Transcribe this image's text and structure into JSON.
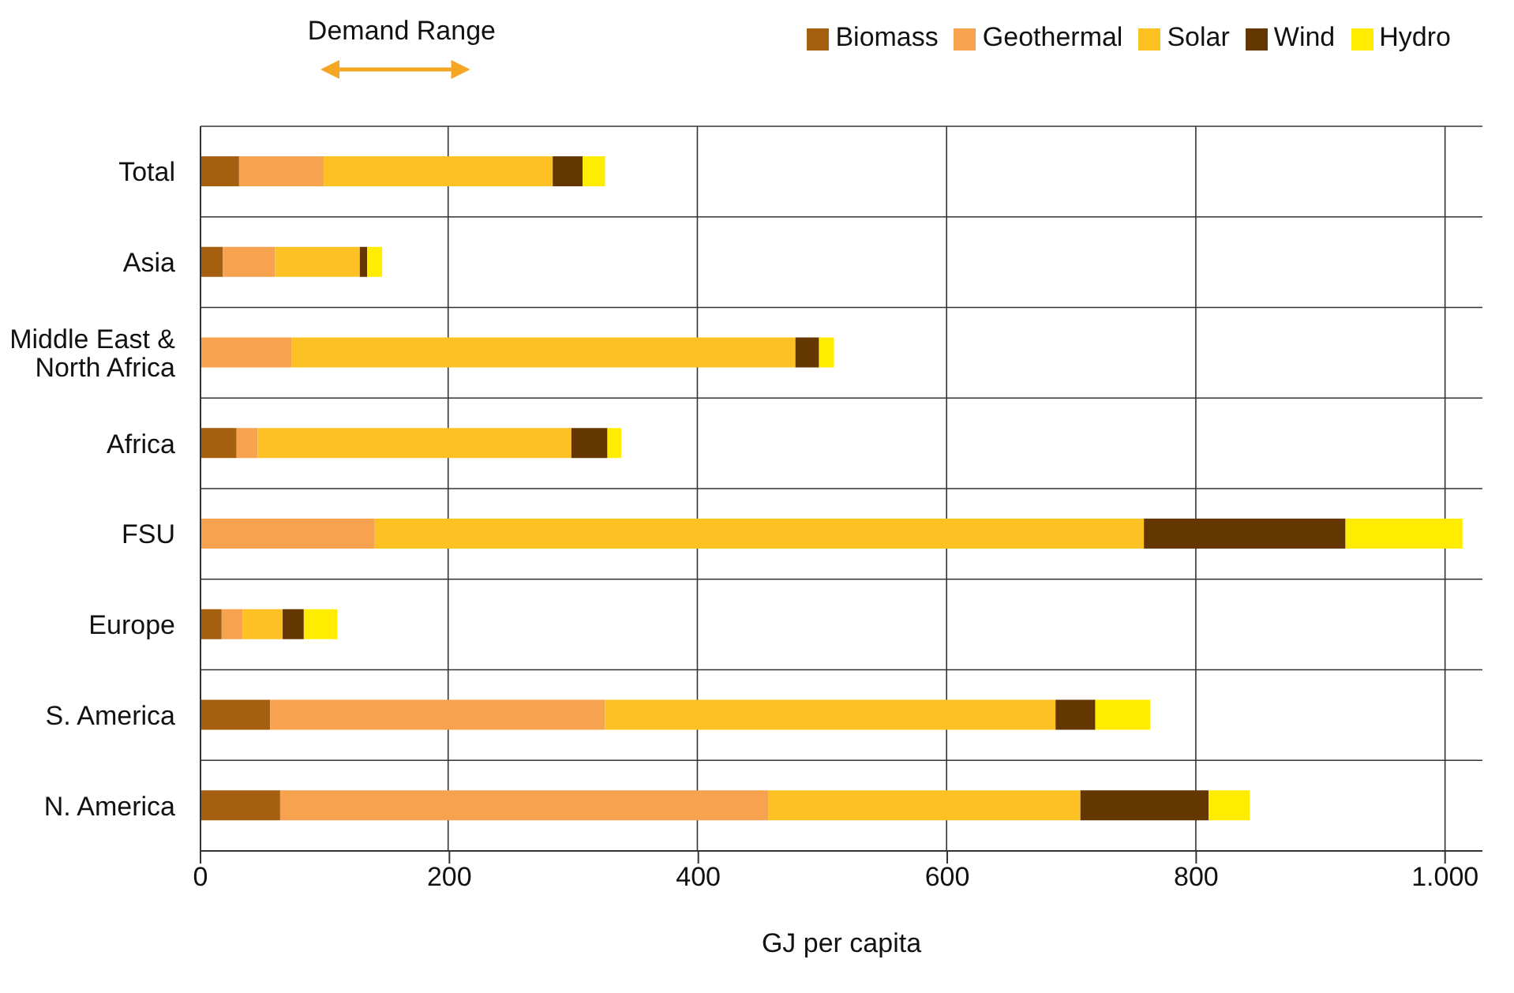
{
  "chart_data": {
    "type": "bar",
    "orientation": "horizontal",
    "stacked": true,
    "categories": [
      "Total",
      "Asia",
      "Middle East & North Africa",
      "Africa",
      "FSU",
      "Europe",
      "S. America",
      "N. America"
    ],
    "series": [
      {
        "name": "Biomass",
        "color": "#a65e0f",
        "values": [
          31,
          18,
          0,
          29,
          0,
          17,
          56,
          64
        ]
      },
      {
        "name": "Geothermal",
        "color": "#f7a24f",
        "values": [
          68,
          42,
          73,
          17,
          140,
          17,
          269,
          392
        ]
      },
      {
        "name": "Solar",
        "color": "#fdc124",
        "values": [
          184,
          68,
          405,
          252,
          618,
          32,
          362,
          251
        ]
      },
      {
        "name": "Wind",
        "color": "#653700",
        "values": [
          24,
          6,
          19,
          29,
          162,
          17,
          32,
          103
        ]
      },
      {
        "name": "Hydro",
        "color": "#ffec00",
        "values": [
          18,
          12,
          12,
          11,
          94,
          27,
          44,
          33
        ]
      }
    ],
    "xlim": [
      0,
      1030
    ],
    "xticks": [
      0,
      200,
      400,
      600,
      800,
      {
        "value": 1000,
        "label": "1.000"
      }
    ],
    "xlabel": "GJ per capita",
    "annotations": [
      "Demand Range"
    ],
    "grid": true,
    "legend": "top right"
  }
}
